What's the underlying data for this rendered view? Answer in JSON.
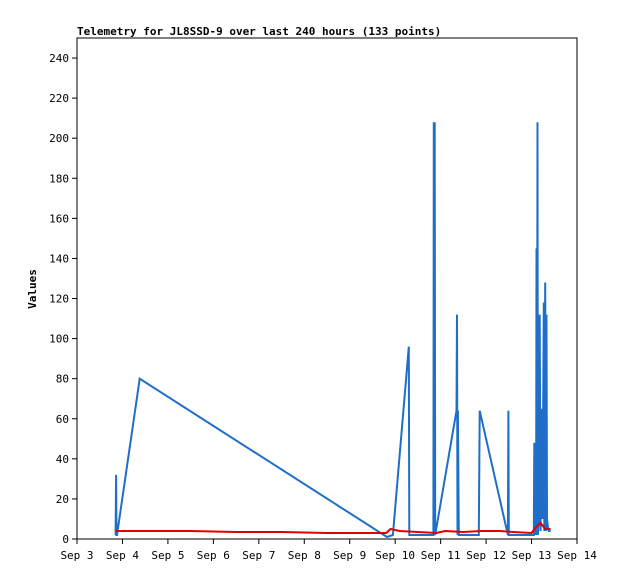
{
  "chart_data": {
    "type": "line",
    "title": "Telemetry for JL8SSD-9 over last 240 hours (133 points)",
    "xlabel": "",
    "ylabel": "Values",
    "xlim": [
      "Sep 3",
      "Sep 14"
    ],
    "ylim": [
      0,
      250
    ],
    "yticks": [
      0,
      20,
      40,
      60,
      80,
      100,
      120,
      140,
      160,
      180,
      200,
      220,
      240
    ],
    "categories": [
      "Sep 3",
      "Sep 4",
      "Sep 5",
      "Sep 6",
      "Sep 7",
      "Sep 8",
      "Sep 9",
      "Sep 10",
      "Sep 11",
      "Sep 12",
      "Sep 13",
      "Sep 14"
    ],
    "grid": false,
    "legend": "none",
    "series": [
      {
        "color": "#1f6fc8",
        "x": [
          3.85,
          3.86,
          3.87,
          3.88,
          4.38,
          9.82,
          9.95,
          10.3,
          10.31,
          10.32,
          10.84,
          10.85,
          10.86,
          10.87,
          10.88,
          11.35,
          11.36,
          11.37,
          11.38,
          11.4,
          11.84,
          11.86,
          12.48,
          12.49,
          12.5,
          12.51,
          13.05,
          13.06,
          13.07,
          13.08,
          13.1,
          13.11,
          13.12,
          13.13,
          13.14,
          13.16,
          13.18,
          13.2,
          13.22,
          13.24,
          13.27,
          13.28,
          13.3,
          13.32,
          13.33,
          13.34,
          13.36,
          13.38,
          13.4,
          13.42
        ],
        "y": [
          2,
          32,
          2,
          2,
          80,
          1,
          2,
          96,
          2,
          2,
          2,
          208,
          2,
          208,
          2,
          64,
          112,
          2,
          64,
          2,
          2,
          64,
          2,
          64,
          2,
          2,
          2,
          48,
          2,
          48,
          2,
          145,
          2,
          208,
          2,
          10,
          112,
          4,
          65,
          10,
          118,
          4,
          128,
          4,
          112,
          10,
          6,
          4,
          4,
          4
        ]
      },
      {
        "color": "#e00000",
        "x": [
          3.85,
          4.5,
          5.5,
          6.5,
          7.5,
          8.5,
          9.5,
          9.8,
          9.9,
          10.1,
          10.5,
          10.9,
          11.1,
          11.5,
          11.9,
          12.3,
          12.6,
          13.0,
          13.1,
          13.2,
          13.3,
          13.42
        ],
        "y": [
          4,
          4,
          4,
          3.5,
          3.5,
          3,
          3,
          3,
          5,
          4,
          3.5,
          3,
          4,
          3.5,
          4,
          4,
          3.5,
          3,
          6,
          8,
          5,
          5
        ]
      },
      {
        "color": "#000000",
        "x": [
          3.85,
          13.42
        ],
        "y": [
          0,
          0
        ]
      }
    ]
  }
}
